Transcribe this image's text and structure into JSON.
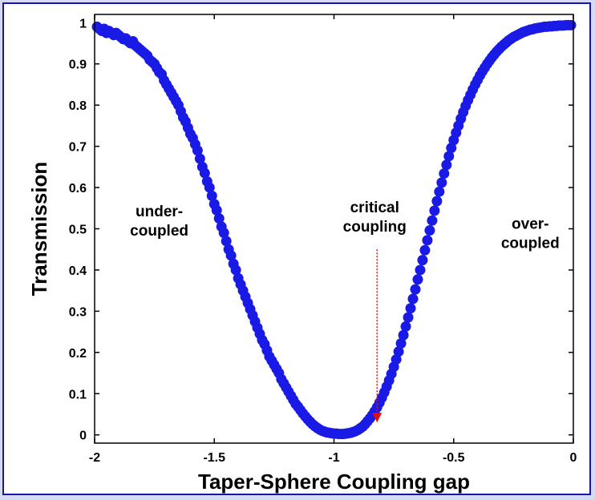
{
  "colors": {
    "page_background": "#d6daf7",
    "frame_border": "#1717a8",
    "points": "#1a1ae6",
    "arrow": "#e01010"
  },
  "chart_data": {
    "type": "scatter",
    "title": "",
    "xlabel": "Taper-Sphere Coupling gap",
    "ylabel": "Transmission",
    "xlim": [
      -2,
      0
    ],
    "ylim": [
      -0.02,
      1.02
    ],
    "grid": false,
    "legend": false,
    "x_ticks": [
      "-2",
      "-1.5",
      "-1",
      "-0.5",
      "0"
    ],
    "y_ticks": [
      "0",
      "0.1",
      "0.2",
      "0.3",
      "0.4",
      "0.5",
      "0.6",
      "0.7",
      "0.8",
      "0.9",
      "1"
    ],
    "series": [
      {
        "marker_color": "#1a1ae6",
        "points": [
          [
            -1.99,
            0.99
          ],
          [
            -1.98,
            0.985
          ],
          [
            -1.97,
            0.98
          ],
          [
            -1.96,
            0.985
          ],
          [
            -1.95,
            0.975
          ],
          [
            -1.94,
            0.98
          ],
          [
            -1.93,
            0.975
          ],
          [
            -1.92,
            0.97
          ],
          [
            -1.91,
            0.975
          ],
          [
            -1.9,
            0.97
          ],
          [
            -1.89,
            0.965
          ],
          [
            -1.88,
            0.96
          ],
          [
            -1.87,
            0.962
          ],
          [
            -1.86,
            0.955
          ],
          [
            -1.85,
            0.95
          ],
          [
            -1.84,
            0.955
          ],
          [
            -1.83,
            0.945
          ],
          [
            -1.82,
            0.94
          ],
          [
            -1.81,
            0.935
          ],
          [
            -1.8,
            0.93
          ],
          [
            -1.79,
            0.925
          ],
          [
            -1.78,
            0.92
          ],
          [
            -1.77,
            0.91
          ],
          [
            -1.76,
            0.905
          ],
          [
            -1.75,
            0.9
          ],
          [
            -1.74,
            0.89
          ],
          [
            -1.73,
            0.88
          ],
          [
            -1.72,
            0.875
          ],
          [
            -1.71,
            0.86
          ],
          [
            -1.7,
            0.85
          ],
          [
            -1.69,
            0.84
          ],
          [
            -1.68,
            0.83
          ],
          [
            -1.67,
            0.82
          ],
          [
            -1.66,
            0.81
          ],
          [
            -1.65,
            0.8
          ],
          [
            -1.64,
            0.785
          ],
          [
            -1.63,
            0.77
          ],
          [
            -1.62,
            0.76
          ],
          [
            -1.61,
            0.745
          ],
          [
            -1.6,
            0.73
          ],
          [
            -1.59,
            0.72
          ],
          [
            -1.58,
            0.705
          ],
          [
            -1.57,
            0.69
          ],
          [
            -1.56,
            0.67
          ],
          [
            -1.55,
            0.65
          ],
          [
            -1.54,
            0.635
          ],
          [
            -1.53,
            0.615
          ],
          [
            -1.52,
            0.6
          ],
          [
            -1.51,
            0.58
          ],
          [
            -1.5,
            0.56
          ],
          [
            -1.49,
            0.545
          ],
          [
            -1.48,
            0.525
          ],
          [
            -1.47,
            0.505
          ],
          [
            -1.46,
            0.49
          ],
          [
            -1.45,
            0.47
          ],
          [
            -1.44,
            0.45
          ],
          [
            -1.43,
            0.435
          ],
          [
            -1.42,
            0.415
          ],
          [
            -1.41,
            0.4
          ],
          [
            -1.4,
            0.38
          ],
          [
            -1.39,
            0.365
          ],
          [
            -1.38,
            0.35
          ],
          [
            -1.37,
            0.335
          ],
          [
            -1.36,
            0.32
          ],
          [
            -1.35,
            0.305
          ],
          [
            -1.34,
            0.29
          ],
          [
            -1.33,
            0.275
          ],
          [
            -1.32,
            0.26
          ],
          [
            -1.31,
            0.245
          ],
          [
            -1.3,
            0.23
          ],
          [
            -1.29,
            0.22
          ],
          [
            -1.28,
            0.205
          ],
          [
            -1.27,
            0.19
          ],
          [
            -1.26,
            0.18
          ],
          [
            -1.25,
            0.17
          ],
          [
            -1.24,
            0.16
          ],
          [
            -1.23,
            0.15
          ],
          [
            -1.22,
            0.135
          ],
          [
            -1.21,
            0.125
          ],
          [
            -1.2,
            0.115
          ],
          [
            -1.19,
            0.105
          ],
          [
            -1.18,
            0.095
          ],
          [
            -1.17,
            0.085
          ],
          [
            -1.16,
            0.075
          ],
          [
            -1.15,
            0.068
          ],
          [
            -1.14,
            0.06
          ],
          [
            -1.13,
            0.052
          ],
          [
            -1.12,
            0.045
          ],
          [
            -1.11,
            0.038
          ],
          [
            -1.1,
            0.032
          ],
          [
            -1.09,
            0.026
          ],
          [
            -1.08,
            0.021
          ],
          [
            -1.07,
            0.017
          ],
          [
            -1.06,
            0.013
          ],
          [
            -1.05,
            0.01
          ],
          [
            -1.04,
            0.008
          ],
          [
            -1.03,
            0.006
          ],
          [
            -1.02,
            0.005
          ],
          [
            -1.01,
            0.004
          ],
          [
            -1.0,
            0.003
          ],
          [
            -0.99,
            0.003
          ],
          [
            -0.98,
            0.002
          ],
          [
            -0.97,
            0.002
          ],
          [
            -0.96,
            0.002
          ],
          [
            -0.95,
            0.003
          ],
          [
            -0.94,
            0.004
          ],
          [
            -0.93,
            0.005
          ],
          [
            -0.92,
            0.007
          ],
          [
            -0.91,
            0.009
          ],
          [
            -0.9,
            0.012
          ],
          [
            -0.89,
            0.016
          ],
          [
            -0.88,
            0.02
          ],
          [
            -0.87,
            0.026
          ],
          [
            -0.86,
            0.033
          ],
          [
            -0.85,
            0.04
          ],
          [
            -0.84,
            0.048
          ],
          [
            -0.83,
            0.057
          ],
          [
            -0.82,
            0.067
          ],
          [
            -0.81,
            0.078
          ],
          [
            -0.8,
            0.09
          ],
          [
            -0.79,
            0.103
          ],
          [
            -0.78,
            0.117
          ],
          [
            -0.77,
            0.132
          ],
          [
            -0.76,
            0.148
          ],
          [
            -0.75,
            0.165
          ],
          [
            -0.74,
            0.183
          ],
          [
            -0.73,
            0.202
          ],
          [
            -0.72,
            0.222
          ],
          [
            -0.71,
            0.242
          ],
          [
            -0.7,
            0.263
          ],
          [
            -0.69,
            0.285
          ],
          [
            -0.68,
            0.307
          ],
          [
            -0.67,
            0.33
          ],
          [
            -0.66,
            0.353
          ],
          [
            -0.65,
            0.377
          ],
          [
            -0.64,
            0.4
          ],
          [
            -0.63,
            0.424
          ],
          [
            -0.62,
            0.448
          ],
          [
            -0.61,
            0.472
          ],
          [
            -0.6,
            0.496
          ],
          [
            -0.59,
            0.52
          ],
          [
            -0.58,
            0.544
          ],
          [
            -0.57,
            0.567
          ],
          [
            -0.56,
            0.59
          ],
          [
            -0.55,
            0.612
          ],
          [
            -0.54,
            0.634
          ],
          [
            -0.53,
            0.655
          ],
          [
            -0.52,
            0.676
          ],
          [
            -0.51,
            0.696
          ],
          [
            -0.5,
            0.715
          ],
          [
            -0.49,
            0.733
          ],
          [
            -0.48,
            0.75
          ],
          [
            -0.47,
            0.767
          ],
          [
            -0.46,
            0.783
          ],
          [
            -0.45,
            0.798
          ],
          [
            -0.44,
            0.812
          ],
          [
            -0.43,
            0.825
          ],
          [
            -0.42,
            0.838
          ],
          [
            -0.41,
            0.85
          ],
          [
            -0.4,
            0.861
          ],
          [
            -0.39,
            0.872
          ],
          [
            -0.38,
            0.882
          ],
          [
            -0.37,
            0.891
          ],
          [
            -0.36,
            0.9
          ],
          [
            -0.35,
            0.908
          ],
          [
            -0.34,
            0.916
          ],
          [
            -0.33,
            0.923
          ],
          [
            -0.32,
            0.93
          ],
          [
            -0.31,
            0.936
          ],
          [
            -0.3,
            0.942
          ],
          [
            -0.29,
            0.947
          ],
          [
            -0.28,
            0.952
          ],
          [
            -0.27,
            0.957
          ],
          [
            -0.26,
            0.961
          ],
          [
            -0.25,
            0.965
          ],
          [
            -0.24,
            0.968
          ],
          [
            -0.23,
            0.971
          ],
          [
            -0.22,
            0.974
          ],
          [
            -0.21,
            0.977
          ],
          [
            -0.2,
            0.979
          ],
          [
            -0.19,
            0.981
          ],
          [
            -0.18,
            0.983
          ],
          [
            -0.17,
            0.984
          ],
          [
            -0.16,
            0.986
          ],
          [
            -0.15,
            0.987
          ],
          [
            -0.14,
            0.988
          ],
          [
            -0.13,
            0.989
          ],
          [
            -0.12,
            0.99
          ],
          [
            -0.11,
            0.99
          ],
          [
            -0.1,
            0.991
          ],
          [
            -0.09,
            0.991
          ],
          [
            -0.08,
            0.992
          ],
          [
            -0.07,
            0.992
          ],
          [
            -0.06,
            0.993
          ],
          [
            -0.05,
            0.993
          ],
          [
            -0.04,
            0.993
          ],
          [
            -0.03,
            0.994
          ],
          [
            -0.02,
            0.994
          ],
          [
            -0.01,
            0.994
          ]
        ]
      }
    ],
    "annotations": [
      {
        "lines": [
          "under-",
          "coupled"
        ],
        "x": -1.73,
        "y": 0.53
      },
      {
        "lines": [
          "critical",
          "coupling"
        ],
        "x": -0.83,
        "y": 0.54
      },
      {
        "lines": [
          "over-",
          "coupled"
        ],
        "x": -0.18,
        "y": 0.5
      }
    ],
    "arrow": {
      "x": -0.82,
      "y_from": 0.45,
      "y_to": 0.03
    }
  }
}
